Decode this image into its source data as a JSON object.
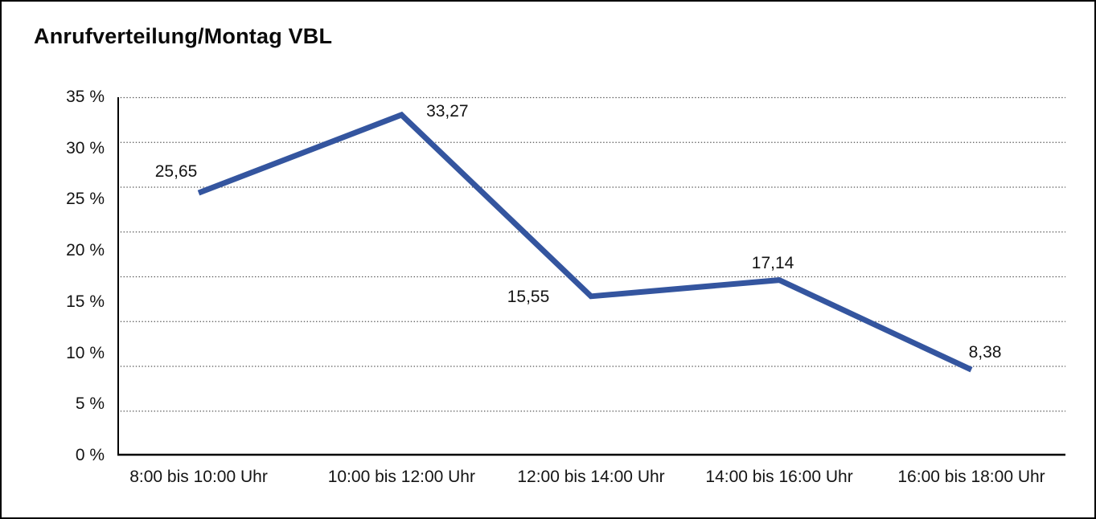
{
  "window": {
    "background_color": "#ffffff",
    "border_color": "#000000"
  },
  "chart_data": {
    "type": "line",
    "title": "Anrufverteilung/Montag VBL",
    "categories": [
      "8:00 bis 10:00 Uhr",
      "10:00 bis 12:00 Uhr",
      "12:00 bis 14:00 Uhr",
      "14:00 bis 16:00 Uhr",
      "16:00 bis 18:00 Uhr"
    ],
    "values": [
      25.65,
      33.27,
      15.55,
      17.14,
      8.38
    ],
    "point_labels": [
      "25,65",
      "33,27",
      "15,55",
      "17,14",
      "8,38"
    ],
    "y_ticks": [
      {
        "value": 35,
        "label": "35 %"
      },
      {
        "value": 30,
        "label": "30 %"
      },
      {
        "value": 25,
        "label": "25 %"
      },
      {
        "value": 20,
        "label": "20 %"
      },
      {
        "value": 15,
        "label": "15 %"
      },
      {
        "value": 10,
        "label": "10 %"
      },
      {
        "value": 5,
        "label": "5 %"
      },
      {
        "value": 0,
        "label": "0 %"
      }
    ],
    "ylim": [
      0,
      35
    ],
    "xlabel": "",
    "ylabel": "",
    "legend": "none",
    "grid": "horizontal-dotted",
    "gridline_count": 9,
    "line_color": "#34559f",
    "grid_color": "#555555",
    "axis_color": "#000000",
    "text_color": "#141414"
  }
}
